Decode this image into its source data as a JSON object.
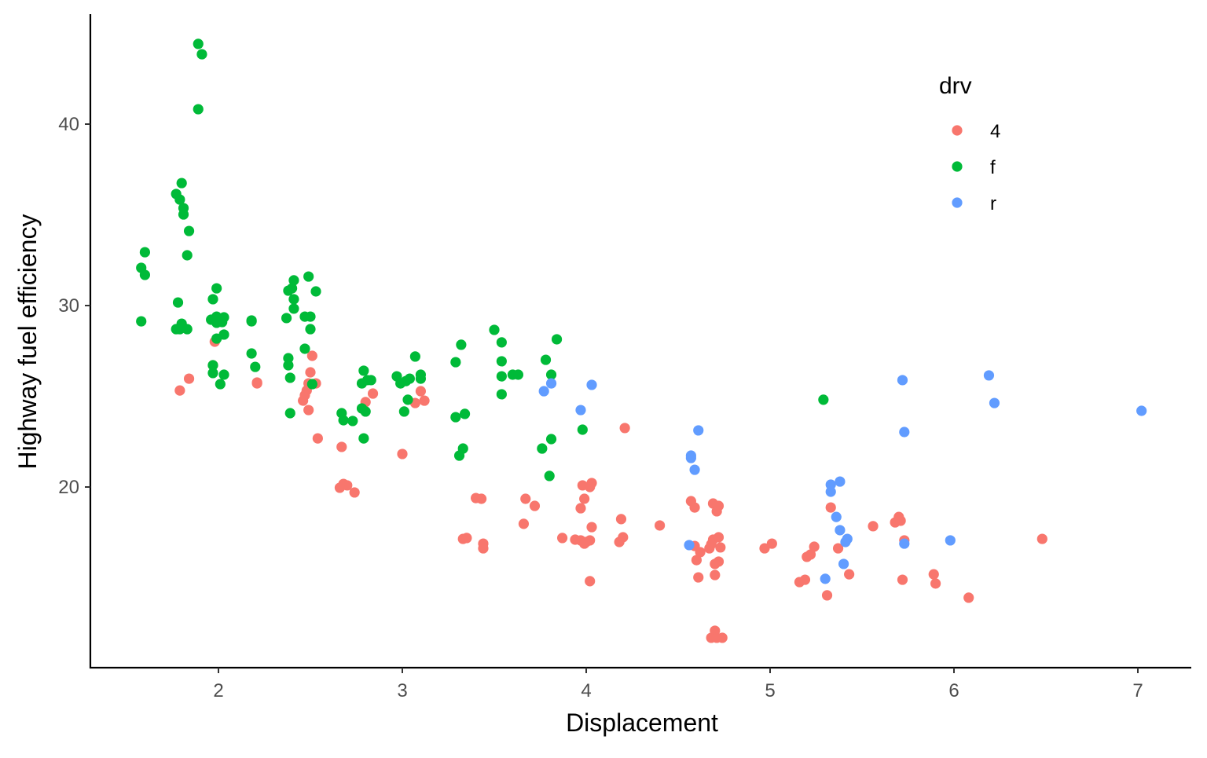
{
  "chart_data": {
    "type": "scatter",
    "xlabel": "Displacement",
    "ylabel": "Highway fuel efficiency",
    "xlim": [
      1.3,
      7.29
    ],
    "ylim": [
      10.04,
      46.06
    ],
    "x_ticks": [
      2,
      3,
      4,
      5,
      6,
      7
    ],
    "y_ticks": [
      20,
      30,
      40
    ],
    "grid": false,
    "legend": {
      "title": "drv",
      "placement": "top-right inside",
      "entries": [
        "4",
        "f",
        "r"
      ]
    },
    "series": [
      {
        "name": "4",
        "color": "#F8766D",
        "points": [
          [
            1.79,
            25.32
          ],
          [
            1.84,
            25.97
          ],
          [
            1.98,
            28.01
          ],
          [
            1.97,
            26.71
          ],
          [
            2.21,
            25.76
          ],
          [
            2.21,
            25.71
          ],
          [
            2.51,
            27.23
          ],
          [
            2.5,
            26.32
          ],
          [
            2.49,
            25.71
          ],
          [
            2.48,
            25.32
          ],
          [
            2.47,
            25.06
          ],
          [
            2.46,
            24.76
          ],
          [
            2.49,
            24.24
          ],
          [
            2.53,
            25.71
          ],
          [
            2.54,
            22.68
          ],
          [
            2.67,
            22.21
          ],
          [
            2.68,
            20.17
          ],
          [
            2.7,
            20.09
          ],
          [
            2.66,
            19.96
          ],
          [
            2.74,
            19.7
          ],
          [
            2.8,
            24.68
          ],
          [
            2.84,
            25.15
          ],
          [
            3.1,
            25.28
          ],
          [
            3.12,
            24.76
          ],
          [
            3.07,
            24.63
          ],
          [
            3.0,
            21.82
          ],
          [
            3.33,
            17.14
          ],
          [
            3.35,
            17.19
          ],
          [
            3.4,
            19.39
          ],
          [
            3.43,
            19.35
          ],
          [
            3.44,
            16.88
          ],
          [
            3.44,
            16.62
          ],
          [
            3.67,
            19.35
          ],
          [
            3.72,
            18.96
          ],
          [
            3.66,
            17.97
          ],
          [
            3.87,
            17.19
          ],
          [
            3.94,
            17.1
          ],
          [
            3.97,
            17.06
          ],
          [
            4.0,
            16.97
          ],
          [
            4.02,
            17.06
          ],
          [
            3.99,
            16.88
          ],
          [
            3.97,
            18.83
          ],
          [
            3.98,
            20.09
          ],
          [
            4.03,
            20.22
          ],
          [
            4.02,
            20.0
          ],
          [
            3.99,
            19.35
          ],
          [
            4.03,
            17.79
          ],
          [
            4.02,
            14.81
          ],
          [
            4.21,
            23.25
          ],
          [
            4.19,
            18.23
          ],
          [
            4.2,
            17.23
          ],
          [
            4.18,
            16.97
          ],
          [
            4.4,
            17.88
          ],
          [
            4.57,
            19.22
          ],
          [
            4.59,
            18.87
          ],
          [
            4.59,
            16.75
          ],
          [
            4.62,
            16.41
          ],
          [
            4.6,
            15.97
          ],
          [
            4.61,
            15.02
          ],
          [
            4.69,
            19.09
          ],
          [
            4.72,
            18.96
          ],
          [
            4.71,
            18.66
          ],
          [
            4.69,
            17.1
          ],
          [
            4.68,
            16.84
          ],
          [
            4.67,
            16.62
          ],
          [
            4.72,
            17.23
          ],
          [
            4.73,
            16.67
          ],
          [
            4.72,
            15.89
          ],
          [
            4.7,
            15.76
          ],
          [
            4.7,
            15.15
          ],
          [
            4.7,
            12.08
          ],
          [
            4.68,
            11.69
          ],
          [
            4.71,
            11.69
          ],
          [
            4.74,
            11.69
          ],
          [
            4.97,
            16.62
          ],
          [
            5.01,
            16.88
          ],
          [
            5.24,
            16.71
          ],
          [
            5.37,
            16.62
          ],
          [
            5.2,
            16.15
          ],
          [
            5.22,
            16.28
          ],
          [
            5.16,
            14.76
          ],
          [
            5.19,
            14.89
          ],
          [
            5.33,
            18.87
          ],
          [
            5.31,
            14.03
          ],
          [
            5.43,
            15.19
          ],
          [
            5.56,
            17.84
          ],
          [
            5.68,
            18.05
          ],
          [
            5.7,
            18.35
          ],
          [
            5.71,
            18.14
          ],
          [
            5.73,
            17.06
          ],
          [
            5.72,
            14.89
          ],
          [
            5.89,
            15.19
          ],
          [
            5.9,
            14.68
          ],
          [
            6.08,
            13.9
          ],
          [
            6.48,
            17.14
          ]
        ]
      },
      {
        "name": "f",
        "color": "#00BA38",
        "points": [
          [
            1.89,
            44.42
          ],
          [
            1.91,
            43.85
          ],
          [
            1.89,
            40.82
          ],
          [
            1.8,
            36.75
          ],
          [
            1.77,
            36.15
          ],
          [
            1.79,
            35.84
          ],
          [
            1.81,
            35.37
          ],
          [
            1.81,
            35.02
          ],
          [
            1.84,
            34.11
          ],
          [
            1.83,
            32.77
          ],
          [
            1.58,
            32.08
          ],
          [
            1.6,
            32.94
          ],
          [
            1.6,
            31.69
          ],
          [
            1.58,
            29.13
          ],
          [
            1.78,
            30.17
          ],
          [
            1.77,
            28.7
          ],
          [
            1.8,
            29.0
          ],
          [
            1.79,
            28.7
          ],
          [
            1.83,
            28.7
          ],
          [
            1.99,
            30.95
          ],
          [
            1.97,
            30.35
          ],
          [
            1.96,
            29.22
          ],
          [
            1.99,
            29.39
          ],
          [
            2.03,
            29.35
          ],
          [
            2.02,
            29.09
          ],
          [
            1.99,
            29.05
          ],
          [
            2.03,
            28.4
          ],
          [
            1.99,
            28.18
          ],
          [
            1.97,
            26.71
          ],
          [
            1.97,
            26.28
          ],
          [
            2.03,
            26.19
          ],
          [
            2.01,
            25.67
          ],
          [
            2.18,
            29.18
          ],
          [
            2.18,
            29.13
          ],
          [
            2.18,
            27.36
          ],
          [
            2.2,
            26.62
          ],
          [
            2.38,
            30.82
          ],
          [
            2.4,
            30.95
          ],
          [
            2.41,
            31.39
          ],
          [
            2.41,
            30.35
          ],
          [
            2.41,
            29.83
          ],
          [
            2.37,
            29.31
          ],
          [
            2.49,
            31.6
          ],
          [
            2.53,
            30.78
          ],
          [
            2.47,
            29.39
          ],
          [
            2.5,
            29.39
          ],
          [
            2.5,
            28.7
          ],
          [
            2.47,
            27.62
          ],
          [
            2.38,
            27.1
          ],
          [
            2.38,
            26.71
          ],
          [
            2.39,
            26.02
          ],
          [
            2.39,
            24.07
          ],
          [
            2.51,
            25.67
          ],
          [
            2.79,
            26.41
          ],
          [
            2.78,
            25.71
          ],
          [
            2.81,
            25.89
          ],
          [
            2.83,
            25.89
          ],
          [
            2.78,
            24.33
          ],
          [
            2.8,
            24.16
          ],
          [
            2.79,
            22.68
          ],
          [
            2.67,
            24.07
          ],
          [
            2.68,
            23.68
          ],
          [
            2.73,
            23.64
          ],
          [
            2.97,
            26.1
          ],
          [
            2.99,
            25.71
          ],
          [
            3.02,
            25.84
          ],
          [
            3.04,
            25.97
          ],
          [
            3.07,
            27.19
          ],
          [
            3.1,
            26.19
          ],
          [
            3.1,
            25.97
          ],
          [
            3.03,
            24.81
          ],
          [
            3.01,
            24.16
          ],
          [
            3.32,
            27.84
          ],
          [
            3.29,
            26.88
          ],
          [
            3.29,
            23.85
          ],
          [
            3.34,
            24.03
          ],
          [
            3.33,
            22.12
          ],
          [
            3.31,
            21.73
          ],
          [
            3.5,
            28.66
          ],
          [
            3.54,
            27.97
          ],
          [
            3.54,
            26.93
          ],
          [
            3.6,
            26.19
          ],
          [
            3.63,
            26.19
          ],
          [
            3.54,
            26.1
          ],
          [
            3.54,
            25.11
          ],
          [
            3.84,
            28.14
          ],
          [
            3.78,
            27.01
          ],
          [
            3.81,
            26.19
          ],
          [
            3.98,
            23.16
          ],
          [
            3.81,
            22.64
          ],
          [
            3.76,
            22.12
          ],
          [
            3.8,
            20.61
          ],
          [
            5.29,
            24.81
          ]
        ]
      },
      {
        "name": "r",
        "color": "#619CFF",
        "points": [
          [
            3.77,
            25.28
          ],
          [
            3.81,
            25.71
          ],
          [
            3.97,
            24.24
          ],
          [
            4.03,
            25.63
          ],
          [
            4.61,
            23.12
          ],
          [
            4.57,
            21.73
          ],
          [
            4.57,
            21.6
          ],
          [
            4.59,
            20.95
          ],
          [
            4.56,
            16.8
          ],
          [
            5.33,
            20.13
          ],
          [
            5.33,
            19.74
          ],
          [
            5.38,
            20.3
          ],
          [
            5.36,
            18.35
          ],
          [
            5.38,
            17.62
          ],
          [
            5.41,
            16.97
          ],
          [
            5.42,
            17.14
          ],
          [
            5.4,
            15.76
          ],
          [
            5.3,
            14.94
          ],
          [
            5.72,
            25.89
          ],
          [
            5.73,
            23.03
          ],
          [
            5.73,
            16.88
          ],
          [
            5.98,
            17.06
          ],
          [
            6.19,
            26.15
          ],
          [
            6.22,
            24.63
          ],
          [
            7.02,
            24.2
          ]
        ]
      }
    ]
  }
}
